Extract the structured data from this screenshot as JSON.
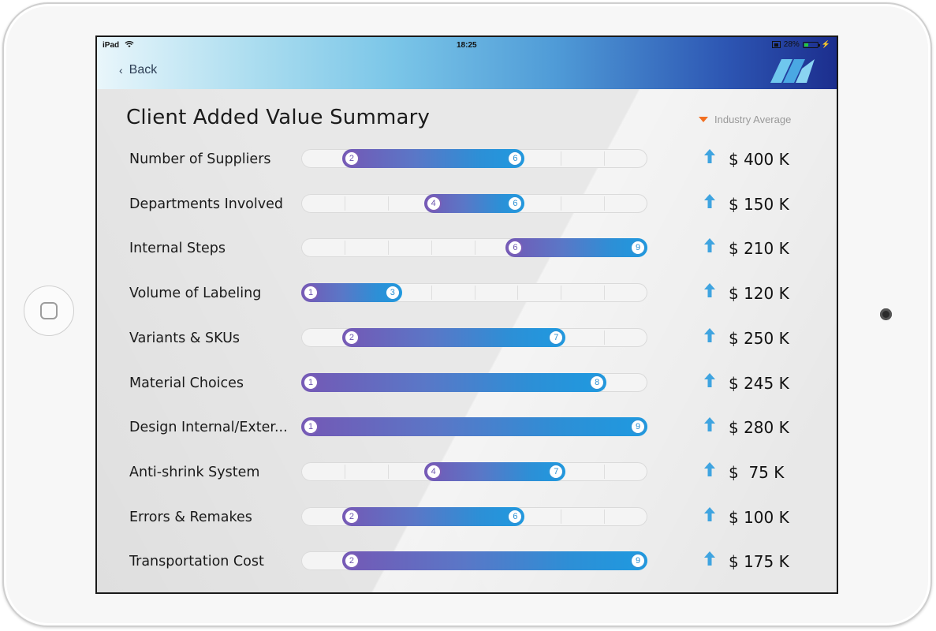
{
  "status_bar": {
    "device": "iPad",
    "time": "18:25",
    "battery": "28%"
  },
  "header": {
    "back_label": "Back"
  },
  "title": "Client Added Value Summary",
  "legend": {
    "label": "Industry Average",
    "color": "#f26f21"
  },
  "scale": {
    "min": 0,
    "max": 8
  },
  "colors": {
    "fill_start": "#7458b5",
    "fill_end": "#1e9ae0",
    "up_arrow": "#3fa4e0"
  },
  "rows": [
    {
      "label": "Number of Suppliers",
      "low": 2,
      "high": 6,
      "value": "$ 400 K"
    },
    {
      "label": "Departments Involved",
      "low": 4,
      "high": 6,
      "value": "$ 150 K"
    },
    {
      "label": "Internal Steps",
      "low": 6,
      "high": 9,
      "value": "$ 210 K"
    },
    {
      "label": "Volume of Labeling",
      "low": 1,
      "high": 3,
      "value": "$ 120 K"
    },
    {
      "label": "Variants & SKUs",
      "low": 2,
      "high": 7,
      "value": "$ 250 K"
    },
    {
      "label": "Material Choices",
      "low": 1,
      "high": 8,
      "value": "$ 245 K"
    },
    {
      "label": "Design Internal/Exter...",
      "low": 1,
      "high": 9,
      "value": "$ 280 K"
    },
    {
      "label": "Anti-shrink System",
      "low": 4,
      "high": 7,
      "value": "$  75 K"
    },
    {
      "label": "Errors & Remakes",
      "low": 2,
      "high": 6,
      "value": "$ 100 K"
    },
    {
      "label": "Transportation Cost",
      "low": 2,
      "high": 9,
      "value": "$ 175 K"
    }
  ]
}
